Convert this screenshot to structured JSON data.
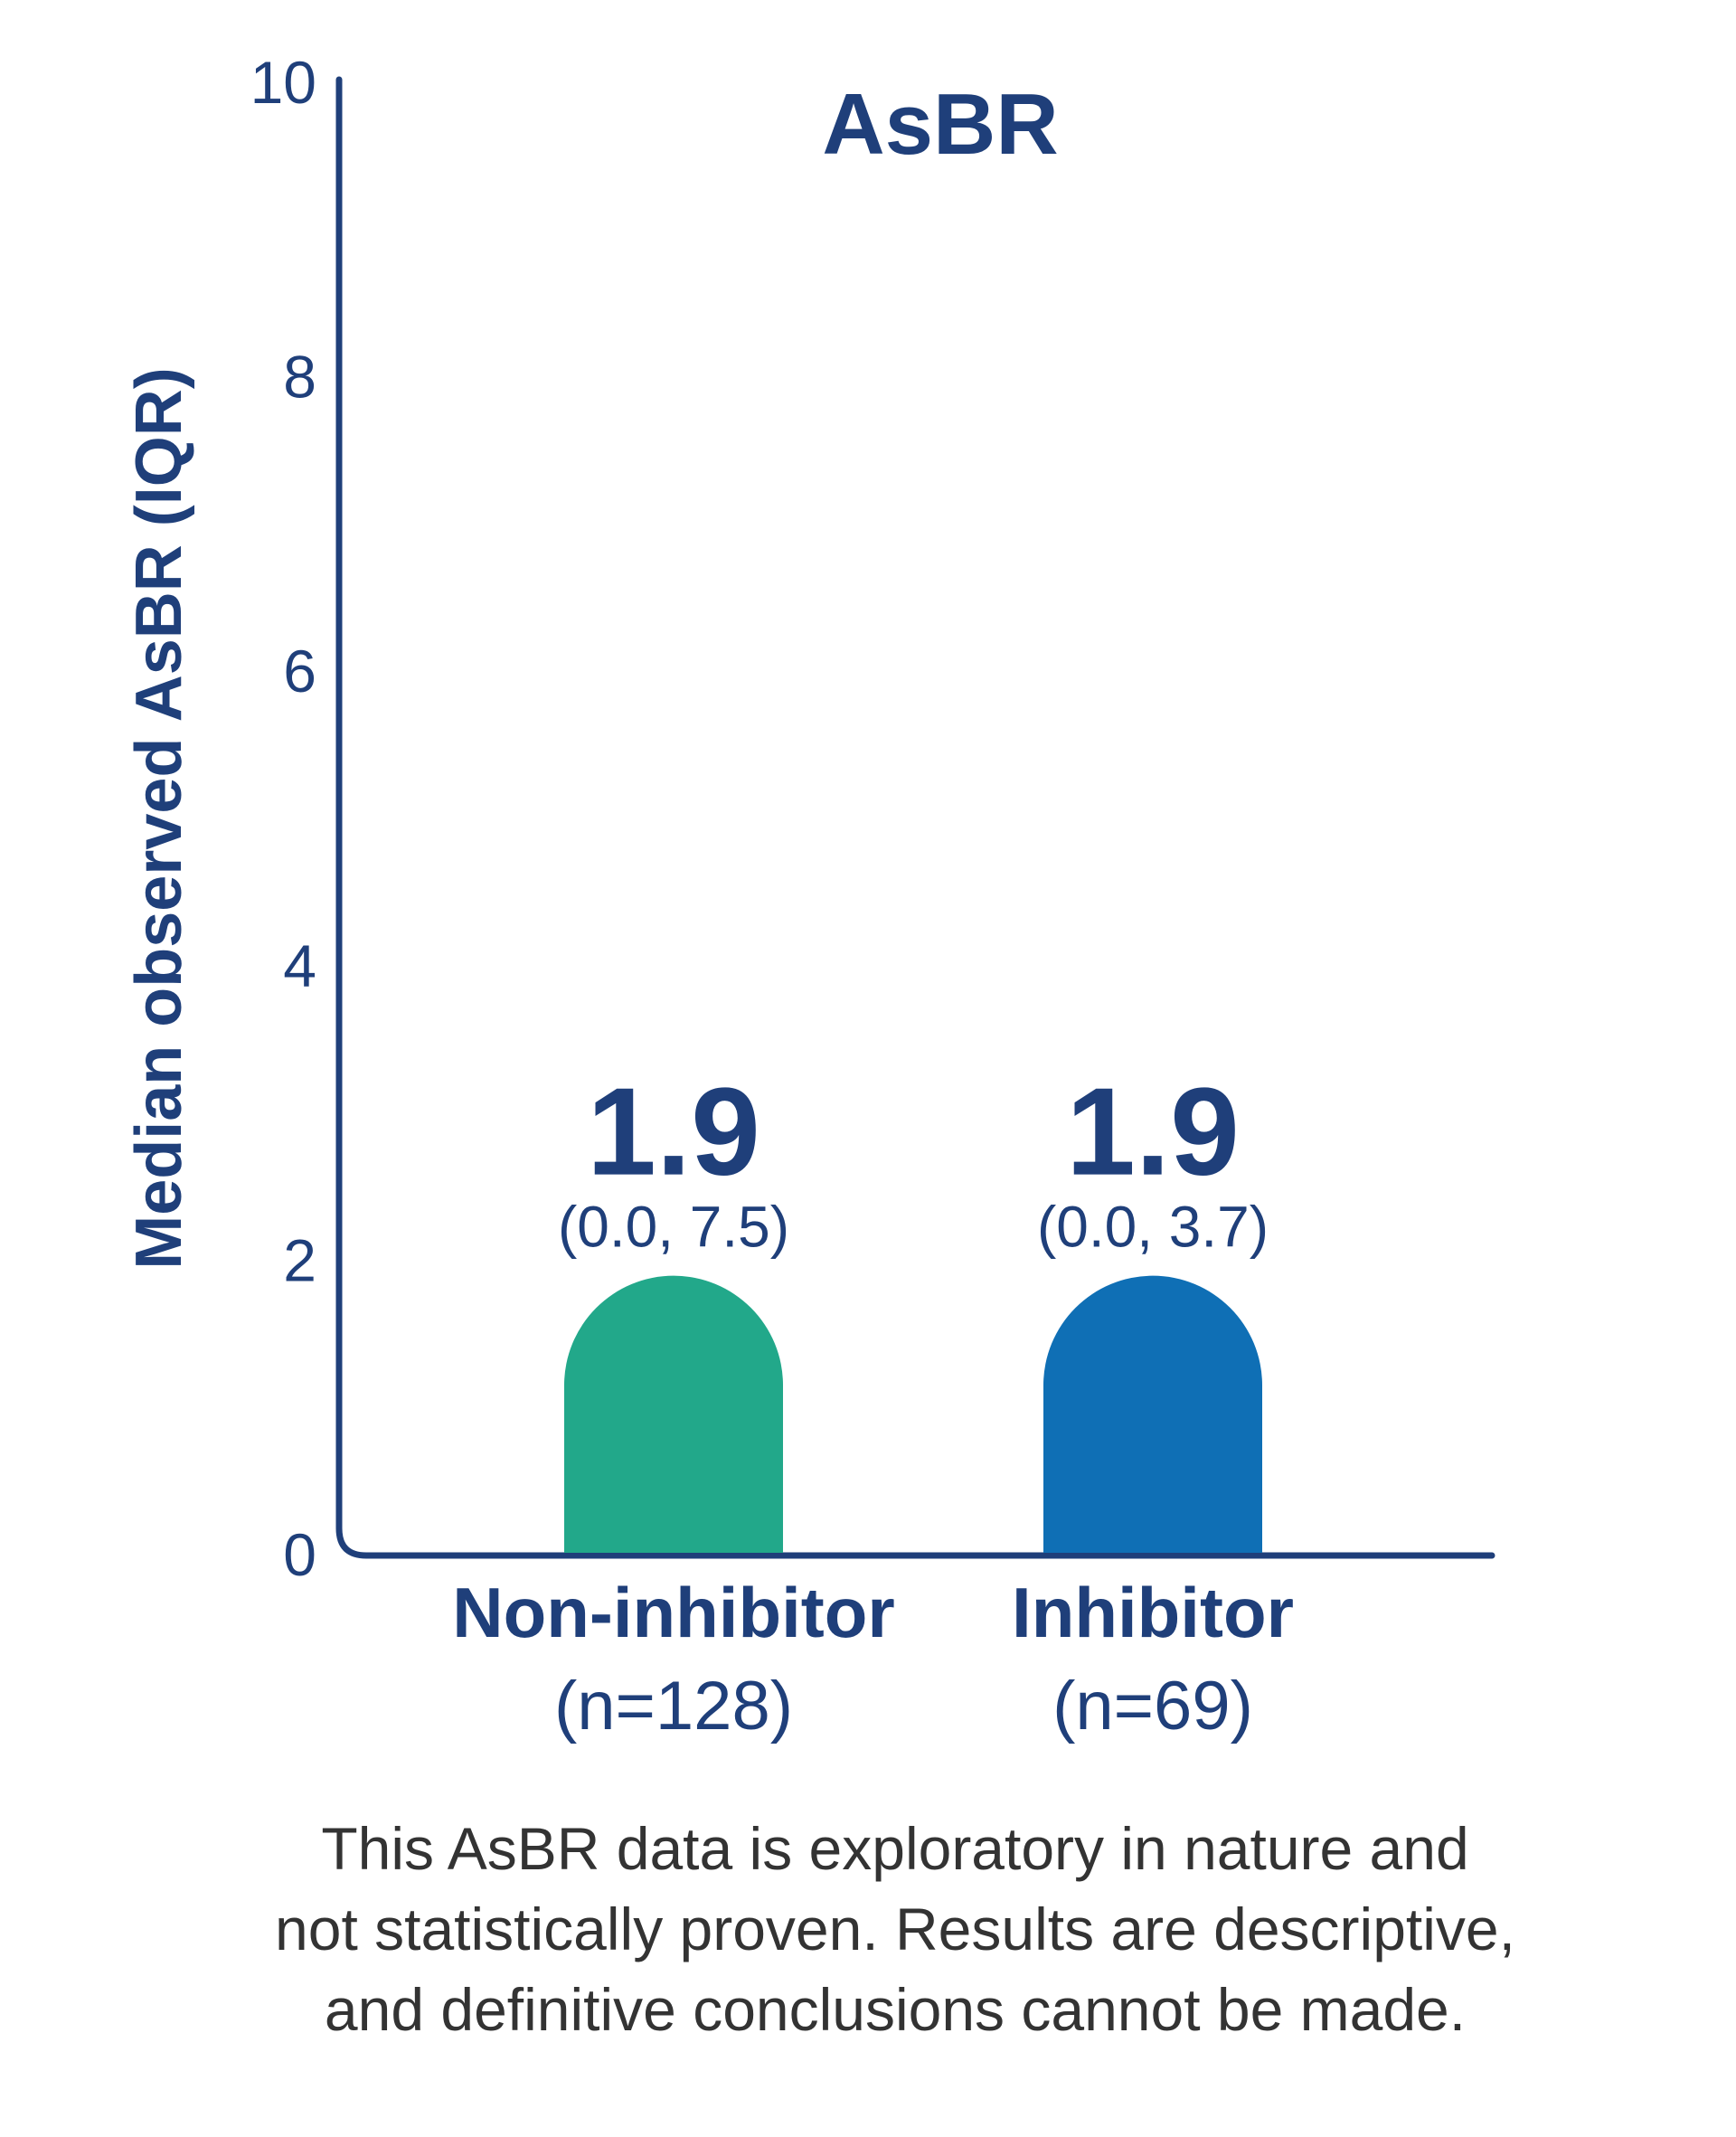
{
  "chart_data": {
    "type": "bar",
    "title": "AsBR",
    "ylabel": "Median observed AsBR (IQR)",
    "xlabel": "",
    "ylim": [
      0,
      10
    ],
    "yticks": [
      "0",
      "2",
      "4",
      "6",
      "8",
      "10"
    ],
    "categories": [
      {
        "name": "Non-inhibitor",
        "n_label": "(n=128)"
      },
      {
        "name": "Inhibitor",
        "n_label": "(n=69)"
      }
    ],
    "values": [
      1.9,
      1.9
    ],
    "value_labels": [
      "1.9",
      "1.9"
    ],
    "iqr_labels": [
      "(0.0, 7.5)",
      "(0.0, 3.7)"
    ],
    "iqr": [
      [
        0.0,
        7.5
      ],
      [
        0.0,
        3.7
      ]
    ],
    "colors": [
      "#22a88a",
      "#0f6fb5"
    ],
    "axis_color": "#1f3f7a",
    "grid": false,
    "legend": "none"
  },
  "footnote": {
    "line1": "This AsBR data is exploratory in nature and",
    "line2": "not statistically proven. Results are descriptive,",
    "line3": "and definitive conclusions cannot be made."
  }
}
